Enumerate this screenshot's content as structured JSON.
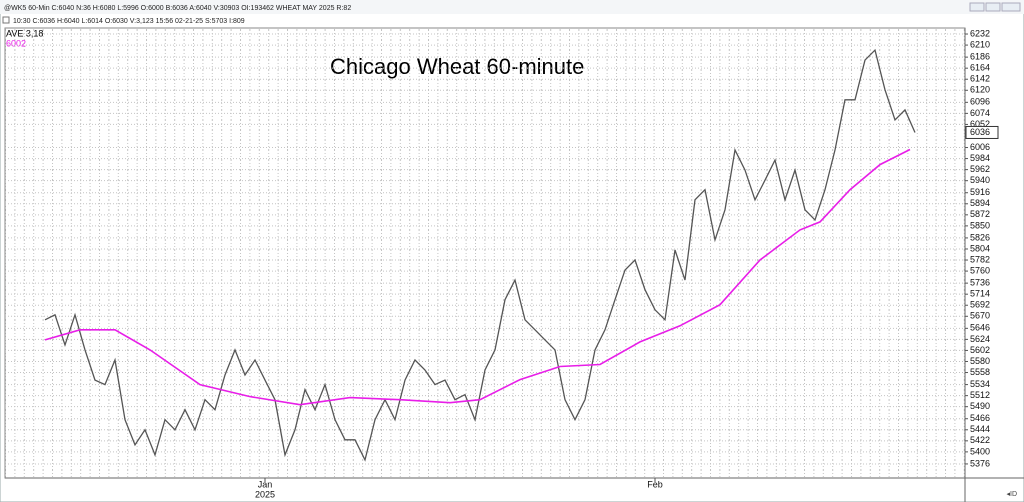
{
  "chart_data": {
    "type": "line",
    "header": [
      "@WK5 60-Min C:6040 N:36 H:6080 L:5996 O:6000 B:6036 A:6040 V:30903 OI:193462 WHEAT MAY 2025 R:82",
      "10:30  C:6036  H:6040  L:6014  O:6030  V:3,123  15:56  02-21-25  S:5703  I:809"
    ],
    "title": "Chicago Wheat 60-minute",
    "year_label": "2025",
    "xlim": [
      -4,
      92
    ],
    "xticks": [
      {
        "value": 22,
        "label": "Jan"
      },
      {
        "value": 61,
        "label": "Feb"
      }
    ],
    "ylim": [
      5348,
      6244
    ],
    "yticks": [
      5376,
      5400,
      5422,
      5444,
      5466,
      5490,
      5512,
      5534,
      5558,
      5580,
      5602,
      5624,
      5646,
      5670,
      5692,
      5714,
      5736,
      5760,
      5782,
      5804,
      5826,
      5850,
      5872,
      5894,
      5916,
      5940,
      5962,
      5984,
      6006,
      6052,
      6074,
      6096,
      6120,
      6142,
      6164,
      6186,
      6210,
      6232
    ],
    "grid": true,
    "series": [
      {
        "name": "WK5",
        "color": "#555555",
        "x": [
          0,
          1,
          2,
          3,
          4,
          5,
          6,
          7,
          8,
          9,
          10,
          11,
          12,
          13,
          14,
          15,
          16,
          17,
          18,
          19,
          20,
          21,
          22,
          23,
          24,
          25,
          26,
          27,
          28,
          29,
          30,
          31,
          32,
          33,
          34,
          35,
          36,
          37,
          38,
          39,
          40,
          41,
          42,
          43,
          44,
          45,
          46,
          47,
          48,
          49,
          50,
          51,
          52,
          53,
          54,
          55,
          56,
          57,
          58,
          59,
          60,
          61,
          62,
          63,
          64,
          65,
          66,
          67,
          68,
          69,
          70,
          71,
          72,
          73,
          74,
          75,
          76,
          77,
          78,
          79,
          80,
          81,
          82,
          83,
          84,
          85,
          86,
          87
        ],
        "values": [
          5663,
          5673,
          5613,
          5673,
          5603,
          5543,
          5534,
          5583,
          5464,
          5414,
          5444,
          5394,
          5464,
          5444,
          5484,
          5444,
          5504,
          5484,
          5553,
          5603,
          5553,
          5583,
          5543,
          5504,
          5394,
          5444,
          5524,
          5484,
          5534,
          5464,
          5424,
          5424,
          5384,
          5464,
          5504,
          5464,
          5543,
          5583,
          5563,
          5534,
          5543,
          5504,
          5514,
          5464,
          5563,
          5603,
          5703,
          5742,
          5663,
          5643,
          5623,
          5603,
          5504,
          5464,
          5504,
          5603,
          5643,
          5703,
          5762,
          5782,
          5723,
          5683,
          5663,
          5802,
          5742,
          5902,
          5922,
          5822,
          5882,
          6001,
          5961,
          5902,
          5941,
          5981,
          5902,
          5961,
          5882,
          5862,
          5922,
          6001,
          6101,
          6101,
          6180,
          6200,
          6121,
          6061,
          6081,
          6036
        ]
      },
      {
        "name": "AVE 3,18",
        "color": "#e81ee8",
        "x": [
          0,
          3.5,
          7,
          10.5,
          15.5,
          20.5,
          25.5,
          30.5,
          35.5,
          40.5,
          43.5,
          47.5,
          51.5,
          55.5,
          59.5,
          63.5,
          67.5,
          71.5,
          75.5,
          77.5,
          80.5,
          83.5,
          86.5
        ],
        "values": [
          5623,
          5643,
          5643,
          5603,
          5534,
          5510,
          5494,
          5508,
          5504,
          5498,
          5504,
          5544,
          5570,
          5574,
          5619,
          5651,
          5693,
          5782,
          5842,
          5858,
          5922,
          5972,
          6002
        ]
      }
    ]
  }
}
